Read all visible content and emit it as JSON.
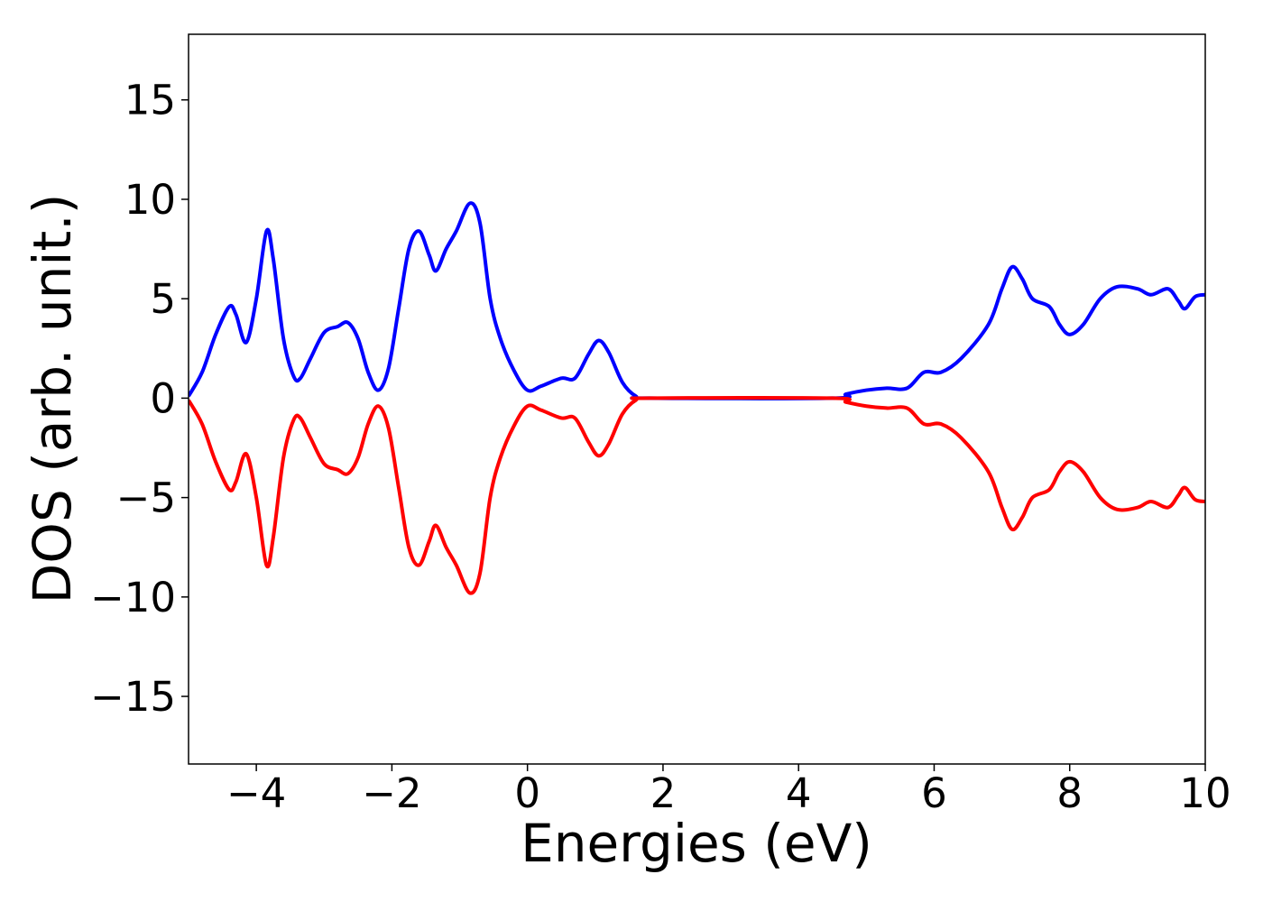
{
  "chart_data": {
    "type": "line",
    "x_label": "Energies (eV)",
    "y_label": "DOS (arb. unit.)",
    "x": [
      -5,
      -4.8,
      -4.6,
      -4.4,
      -4.3,
      -4.15,
      -4.0,
      -3.85,
      -3.75,
      -3.6,
      -3.45,
      -3.35,
      -3.2,
      -3.0,
      -2.8,
      -2.65,
      -2.5,
      -2.35,
      -2.2,
      -2.05,
      -1.9,
      -1.75,
      -1.6,
      -1.45,
      -1.35,
      -1.2,
      -1.05,
      -0.85,
      -0.7,
      -0.55,
      -0.4,
      -0.2,
      0,
      0.2,
      0.5,
      0.7,
      0.9,
      1.05,
      1.2,
      1.4,
      1.6,
      1.8,
      4.5,
      4.7,
      5.0,
      5.3,
      5.6,
      5.85,
      6.1,
      6.4,
      6.8,
      7.0,
      7.15,
      7.3,
      7.45,
      7.7,
      7.85,
      8.0,
      8.2,
      8.45,
      8.7,
      9.0,
      9.2,
      9.45,
      9.6,
      9.7,
      9.85,
      10
    ],
    "series": [
      {
        "color": "#0000ff",
        "values": [
          0.1,
          1.3,
          3.2,
          4.6,
          4.2,
          2.8,
          5.0,
          8.4,
          7.0,
          3.0,
          1.1,
          1.0,
          2.0,
          3.3,
          3.6,
          3.8,
          3.0,
          1.3,
          0.4,
          1.5,
          4.5,
          7.5,
          8.4,
          7.2,
          6.4,
          7.5,
          8.4,
          9.8,
          8.8,
          5.0,
          3.0,
          1.4,
          0.4,
          0.6,
          1.0,
          1.0,
          2.2,
          2.9,
          2.3,
          0.8,
          0.1,
          0,
          0,
          0.2,
          0.4,
          0.5,
          0.5,
          1.3,
          1.3,
          2.0,
          3.7,
          5.5,
          6.6,
          6.0,
          5.0,
          4.6,
          3.7,
          3.2,
          3.7,
          5.0,
          5.6,
          5.5,
          5.2,
          5.5,
          4.9,
          4.5,
          5.1,
          5.2
        ]
      },
      {
        "color": "#ff0000",
        "values": [
          -0.1,
          -1.3,
          -3.2,
          -4.6,
          -4.2,
          -2.8,
          -5.0,
          -8.4,
          -7.0,
          -3.0,
          -1.1,
          -1.0,
          -2.0,
          -3.3,
          -3.6,
          -3.8,
          -3.0,
          -1.3,
          -0.4,
          -1.5,
          -4.5,
          -7.5,
          -8.4,
          -7.2,
          -6.4,
          -7.5,
          -8.4,
          -9.8,
          -8.8,
          -5.0,
          -3.0,
          -1.4,
          -0.4,
          -0.6,
          -1.0,
          -1.0,
          -2.2,
          -2.9,
          -2.3,
          -0.8,
          -0.1,
          0,
          0,
          -0.2,
          -0.4,
          -0.5,
          -0.5,
          -1.3,
          -1.3,
          -2.0,
          -3.7,
          -5.5,
          -6.6,
          -6.0,
          -5.0,
          -4.6,
          -3.7,
          -3.2,
          -3.7,
          -5.0,
          -5.6,
          -5.5,
          -5.2,
          -5.5,
          -4.9,
          -4.5,
          -5.1,
          -5.2
        ]
      }
    ],
    "xlim": [
      -5,
      10
    ],
    "xticks": [
      {
        "value": -4,
        "label": "−4"
      },
      {
        "value": -2,
        "label": "−2"
      },
      0,
      2,
      4,
      6,
      8,
      10
    ],
    "ylim": [
      -18.4,
      18.3
    ],
    "yticks": [
      {
        "value": -15,
        "label": "−15"
      },
      {
        "value": -10,
        "label": "−10"
      },
      {
        "value": -5,
        "label": "−5"
      },
      0,
      5,
      10,
      15
    ]
  }
}
